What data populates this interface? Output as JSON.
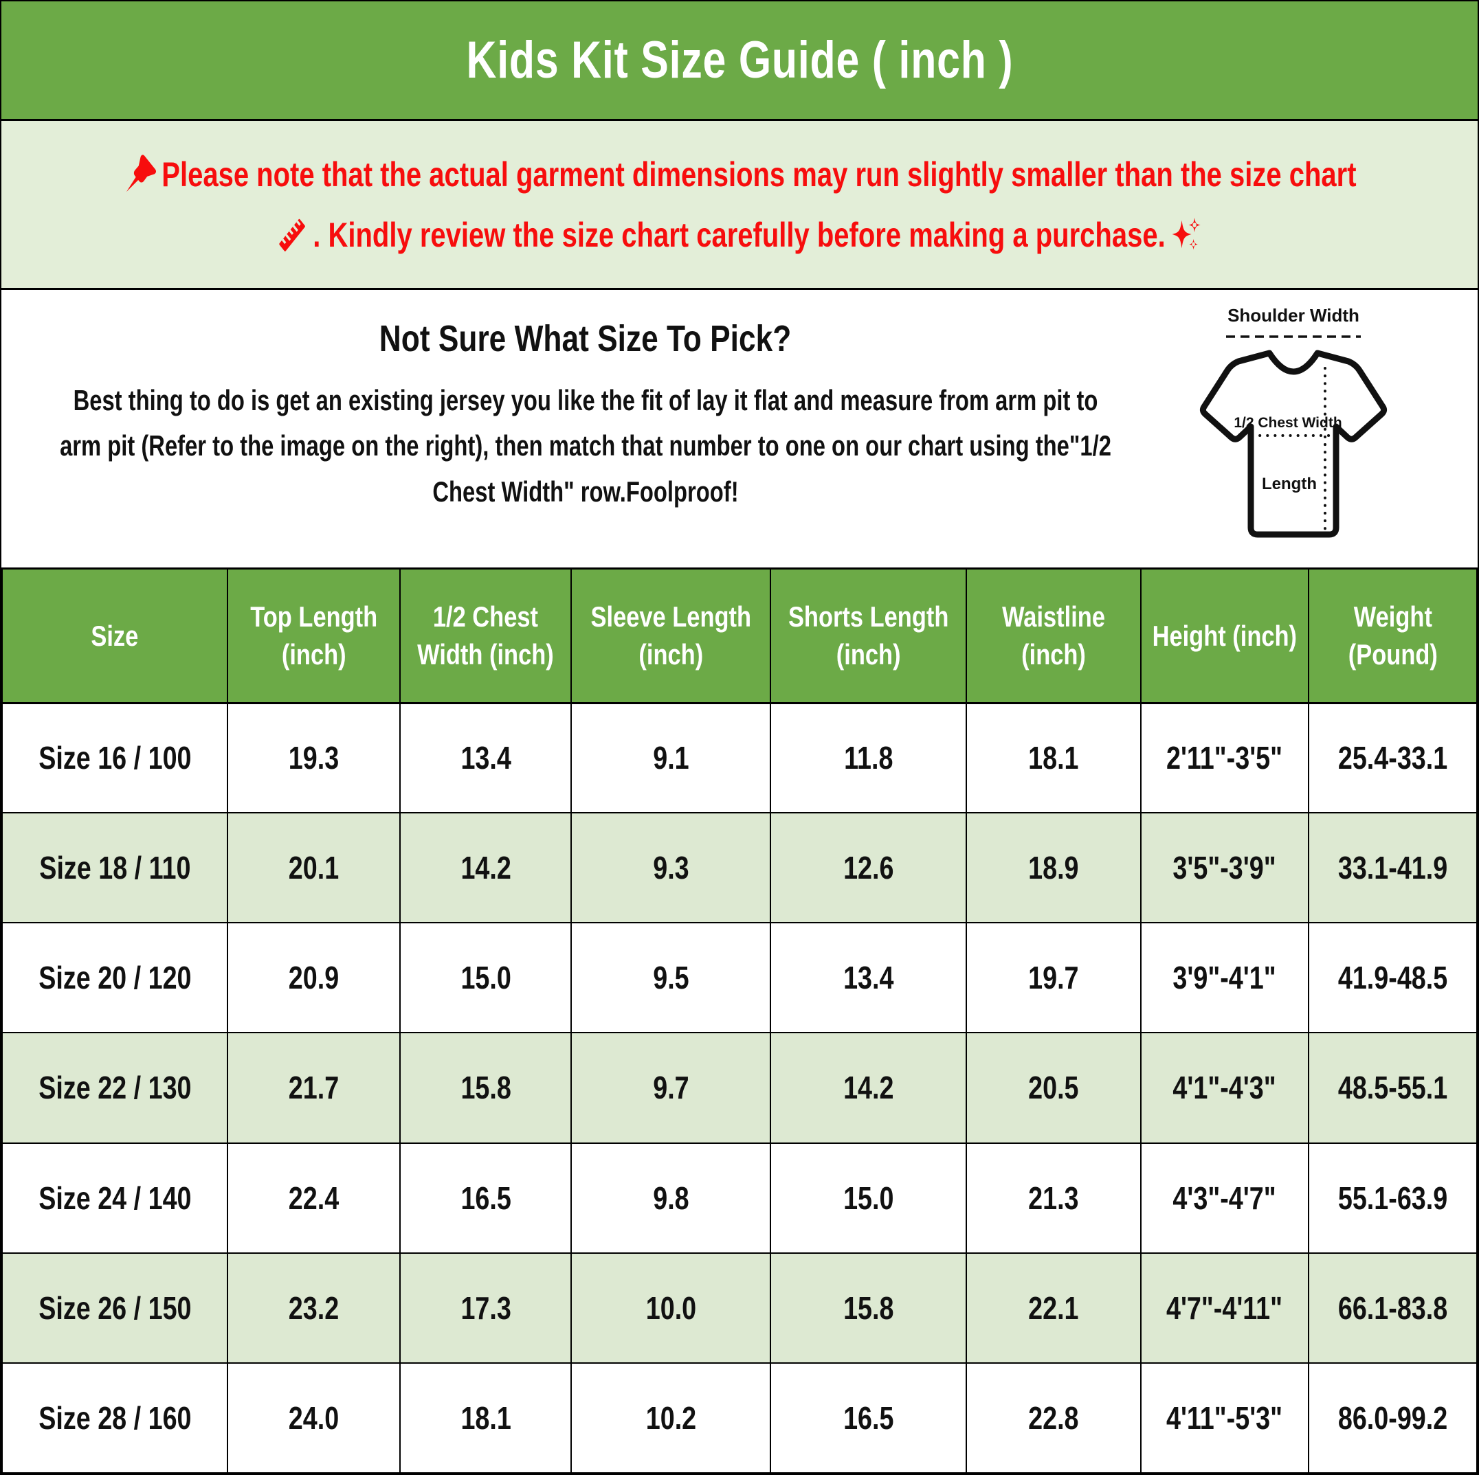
{
  "title": "Kids Kit Size Guide ( inch )",
  "notice": {
    "line1": "Please note that the actual garment dimensions may run slightly smaller than the size chart",
    "line2": ". Kindly review the size chart carefully before making a purchase.",
    "icons": {
      "pin": "pushpin-icon",
      "ruler": "ruler-icon",
      "sparkles": "sparkles-icon"
    }
  },
  "sizing_help": {
    "heading": "Not Sure What Size To Pick?",
    "body": "Best thing to do is get an existing jersey you like the fit of lay it flat and measure from arm pit to arm pit (Refer to the image on the right), then match that number to one on our chart using the\"1/2 Chest Width\" row.Foolproof!"
  },
  "diagram": {
    "shoulder_label": "Shoulder Width",
    "chest_label": "1/2 Chest Width",
    "length_label": "Length",
    "icon": "tshirt-measurement-diagram"
  },
  "table": {
    "headers": [
      "Size",
      "Top Length (inch)",
      "1/2 Chest Width (inch)",
      "Sleeve Length (inch)",
      "Shorts Length (inch)",
      "Waistline (inch)",
      "Height (inch)",
      "Weight (Pound)"
    ],
    "rows": [
      [
        "Size 16 / 100",
        "19.3",
        "13.4",
        "9.1",
        "11.8",
        "18.1",
        "2'11\"-3'5\"",
        "25.4-33.1"
      ],
      [
        "Size 18 / 110",
        "20.1",
        "14.2",
        "9.3",
        "12.6",
        "18.9",
        "3'5\"-3'9\"",
        "33.1-41.9"
      ],
      [
        "Size 20 / 120",
        "20.9",
        "15.0",
        "9.5",
        "13.4",
        "19.7",
        "3'9\"-4'1\"",
        "41.9-48.5"
      ],
      [
        "Size 22 / 130",
        "21.7",
        "15.8",
        "9.7",
        "14.2",
        "20.5",
        "4'1\"-4'3\"",
        "48.5-55.1"
      ],
      [
        "Size 24 / 140",
        "22.4",
        "16.5",
        "9.8",
        "15.0",
        "21.3",
        "4'3\"-4'7\"",
        "55.1-63.9"
      ],
      [
        "Size 26 / 150",
        "23.2",
        "17.3",
        "10.0",
        "15.8",
        "22.1",
        "4'7\"-4'11\"",
        "66.1-83.8"
      ],
      [
        "Size 28 / 160",
        "24.0",
        "18.1",
        "10.2",
        "16.5",
        "22.8",
        "4'11\"-5'3\"",
        "86.0-99.2"
      ]
    ]
  },
  "colors": {
    "green": "#6caa47",
    "stripe": "#dde9d2",
    "notice_bg": "#e3eed8",
    "red": "#f70d0d",
    "text": "#111111",
    "table_border": "#000000"
  }
}
